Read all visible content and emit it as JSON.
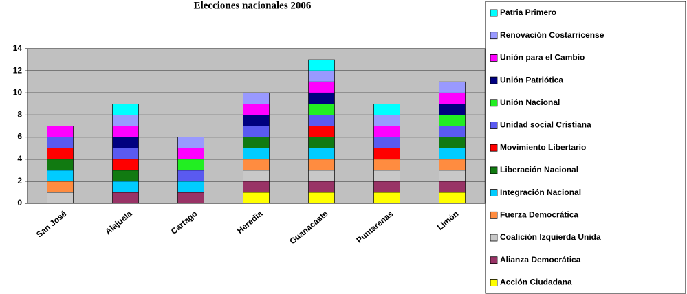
{
  "chart_data": {
    "type": "stacked_bar",
    "title": "Elecciones nacionales 2006",
    "categories": [
      "San José",
      "Alajuela",
      "Cartago",
      "Heredia",
      "Guanacaste",
      "Puntarenas",
      "Limón"
    ],
    "ylim": [
      0,
      14
    ],
    "yticks": [
      0,
      2,
      4,
      6,
      8,
      10,
      12,
      14
    ],
    "grid": true,
    "legend": "right",
    "series": [
      {
        "name": "Acción Ciudadana",
        "color": "#ffff00",
        "values": [
          0,
          0,
          0,
          1,
          1,
          1,
          1
        ]
      },
      {
        "name": "Alianza Democrática",
        "color": "#993366",
        "values": [
          0,
          1,
          1,
          1,
          1,
          1,
          1
        ]
      },
      {
        "name": "Coalición Izquierda Unida",
        "color": "#c8c8c8",
        "values": [
          1,
          0,
          0,
          1,
          1,
          1,
          1
        ]
      },
      {
        "name": "Fuerza Democrática",
        "color": "#ff8c40",
        "values": [
          1,
          0,
          0,
          1,
          1,
          1,
          1
        ]
      },
      {
        "name": "Integración Nacional",
        "color": "#00ccff",
        "values": [
          1,
          1,
          1,
          1,
          1,
          0,
          1
        ]
      },
      {
        "name": "Liberación Nacional",
        "color": "#117a11",
        "values": [
          1,
          1,
          0,
          1,
          1,
          0,
          1
        ]
      },
      {
        "name": "Movimiento Libertario",
        "color": "#ff0000",
        "values": [
          1,
          1,
          0,
          0,
          1,
          1,
          0
        ]
      },
      {
        "name": "Unidad social Cristiana",
        "color": "#5a5af0",
        "values": [
          1,
          1,
          1,
          1,
          1,
          1,
          1
        ]
      },
      {
        "name": "Unión Nacional",
        "color": "#22ee22",
        "values": [
          0,
          0,
          1,
          0,
          1,
          0,
          1
        ]
      },
      {
        "name": "Unión Patriótica",
        "color": "#000080",
        "values": [
          0,
          1,
          0,
          1,
          1,
          0,
          1
        ]
      },
      {
        "name": "Unión para el Cambio",
        "color": "#ff00ff",
        "values": [
          1,
          1,
          1,
          1,
          1,
          1,
          1
        ]
      },
      {
        "name": "Renovación Costarricense",
        "color": "#9999ff",
        "values": [
          0,
          1,
          1,
          1,
          1,
          1,
          1
        ]
      },
      {
        "name": "Patria Primero",
        "color": "#00ffff",
        "values": [
          0,
          1,
          0,
          0,
          1,
          1,
          0
        ]
      }
    ]
  }
}
